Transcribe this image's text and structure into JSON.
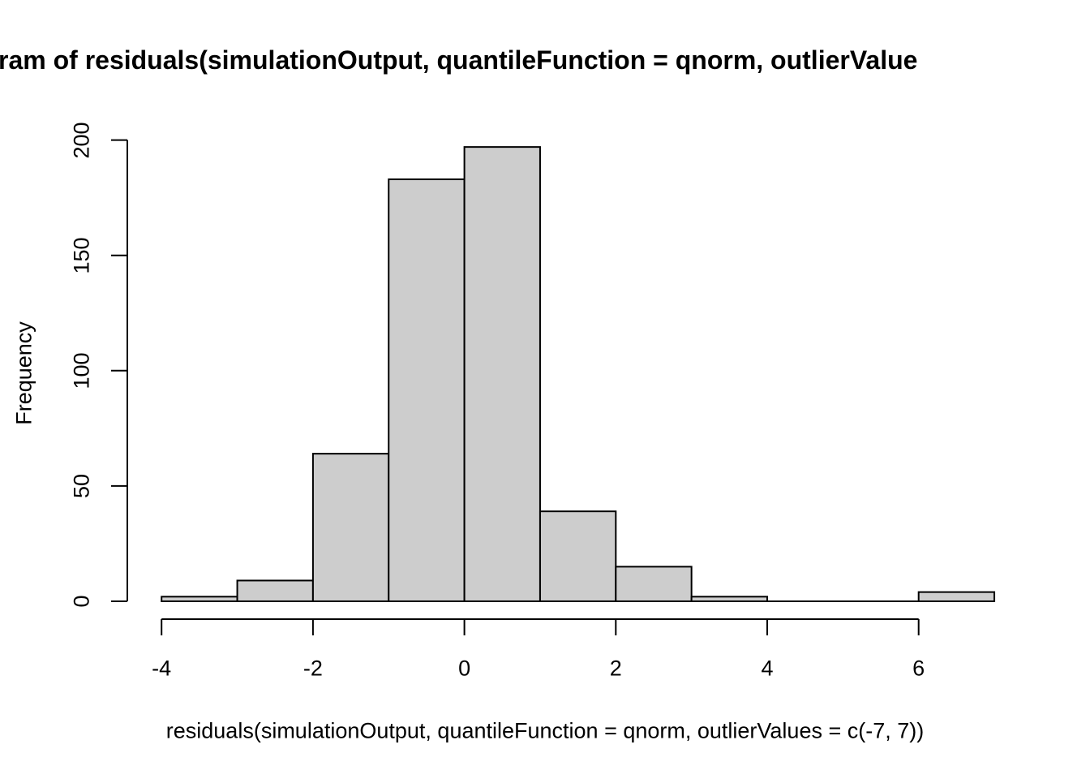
{
  "chart_data": {
    "type": "bar",
    "subtype": "histogram",
    "title": "ram of residuals(simulationOutput, quantileFunction = qnorm, outlierValue",
    "xlabel": "residuals(simulationOutput, quantileFunction = qnorm, outlierValues = c(-7, 7))",
    "ylabel": "Frequency",
    "breaks": [
      -4,
      -3,
      -2,
      -1,
      0,
      1,
      2,
      3,
      4,
      5,
      6,
      7
    ],
    "counts": [
      2,
      9,
      64,
      183,
      197,
      39,
      15,
      2,
      0,
      0,
      4
    ],
    "x_ticks": [
      -4,
      -2,
      0,
      2,
      4,
      6
    ],
    "y_ticks": [
      0,
      50,
      100,
      150,
      200
    ],
    "xlim": [
      -4,
      7
    ],
    "ylim": [
      0,
      200
    ],
    "grid": false,
    "legend": false,
    "bar_fill": "#cdcdcd",
    "bar_stroke": "#000000",
    "axis_color": "#000000",
    "background": "#ffffff"
  }
}
